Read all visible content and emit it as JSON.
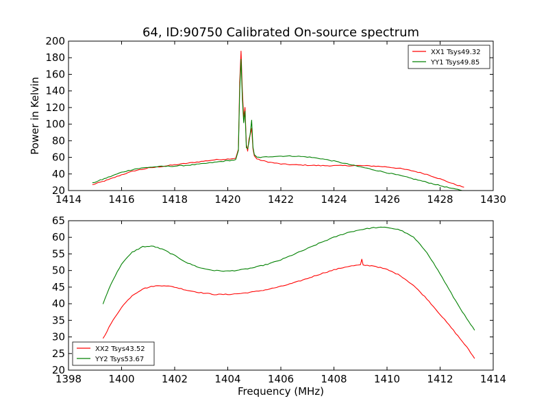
{
  "title": "64, ID:90750 Calibrated On-source spectrum",
  "colors": {
    "xx": "#ff0000",
    "yy": "#008000"
  },
  "chart_data": [
    {
      "type": "line",
      "title": "64, ID:90750 Calibrated On-source spectrum",
      "xlabel": "",
      "ylabel": "Power in Kelvin",
      "xlim": [
        1414,
        1430
      ],
      "ylim": [
        20,
        200
      ],
      "xticks": [
        1414,
        1416,
        1418,
        1420,
        1422,
        1424,
        1426,
        1428,
        1430
      ],
      "yticks": [
        20,
        40,
        60,
        80,
        100,
        120,
        140,
        160,
        180,
        200
      ],
      "legend_position": "top-right",
      "grid": false,
      "series": [
        {
          "name": "XX1 Tsys49.32",
          "color": "#ff0000",
          "x": [
            1414.9,
            1415.5,
            1416.0,
            1416.5,
            1417.0,
            1417.5,
            1418.0,
            1418.5,
            1419.0,
            1419.5,
            1420.0,
            1420.3,
            1420.4,
            1420.45,
            1420.5,
            1420.55,
            1420.6,
            1420.65,
            1420.7,
            1420.75,
            1420.8,
            1420.85,
            1420.9,
            1420.95,
            1421.0,
            1421.1,
            1421.3,
            1421.6,
            1422.0,
            1422.5,
            1423.0,
            1423.5,
            1424.0,
            1424.5,
            1425.0,
            1425.5,
            1426.0,
            1426.5,
            1427.0,
            1427.5,
            1428.0,
            1428.5,
            1428.9
          ],
          "y": [
            27,
            33,
            39,
            44,
            47,
            49,
            51,
            53,
            55,
            57,
            58,
            59,
            70,
            150,
            188,
            140,
            108,
            120,
            75,
            68,
            82,
            88,
            95,
            70,
            62,
            58,
            56,
            54,
            52,
            51,
            50.5,
            50,
            50,
            50,
            50,
            49.5,
            48.5,
            46.5,
            43.5,
            39.5,
            34,
            28,
            24
          ]
        },
        {
          "name": "YY1 Tsys49.85",
          "color": "#008000",
          "x": [
            1414.9,
            1415.5,
            1416.0,
            1416.5,
            1417.0,
            1417.5,
            1418.0,
            1418.5,
            1419.0,
            1419.5,
            1420.0,
            1420.3,
            1420.4,
            1420.45,
            1420.5,
            1420.55,
            1420.6,
            1420.65,
            1420.7,
            1420.75,
            1420.8,
            1420.85,
            1420.9,
            1420.95,
            1421.0,
            1421.1,
            1421.3,
            1421.6,
            1422.0,
            1422.5,
            1423.0,
            1423.5,
            1424.0,
            1424.5,
            1425.0,
            1425.5,
            1426.0,
            1426.5,
            1427.0,
            1427.5,
            1428.0,
            1428.5,
            1428.9
          ],
          "y": [
            29,
            36,
            42,
            46,
            48,
            49,
            49.5,
            50.5,
            52,
            54,
            56,
            57,
            68,
            140,
            178,
            130,
            102,
            116,
            72,
            70,
            78,
            90,
            105,
            72,
            63,
            60,
            60,
            61,
            61.5,
            61.5,
            60.5,
            58.5,
            55.5,
            52,
            48.5,
            45,
            41.5,
            38,
            34,
            30,
            26,
            22,
            20
          ]
        }
      ]
    },
    {
      "type": "line",
      "title": "",
      "xlabel": "Frequency (MHz)",
      "ylabel": "",
      "xlim": [
        1398,
        1414
      ],
      "ylim": [
        20,
        65
      ],
      "xticks": [
        1398,
        1400,
        1402,
        1404,
        1406,
        1408,
        1410,
        1412,
        1414
      ],
      "yticks": [
        20,
        25,
        30,
        35,
        40,
        45,
        50,
        55,
        60,
        65
      ],
      "legend_position": "bottom-left",
      "grid": false,
      "series": [
        {
          "name": "XX2 Tsys43.52",
          "color": "#ff0000",
          "x": [
            1399.3,
            1399.6,
            1400.0,
            1400.4,
            1400.8,
            1401.2,
            1401.6,
            1402.0,
            1402.5,
            1403.0,
            1403.5,
            1404.0,
            1404.5,
            1405.0,
            1405.5,
            1406.0,
            1406.5,
            1407.0,
            1407.5,
            1408.0,
            1408.5,
            1409.0,
            1409.05,
            1409.1,
            1409.5,
            1410.0,
            1410.5,
            1411.0,
            1411.5,
            1412.0,
            1412.5,
            1413.0,
            1413.3
          ],
          "y": [
            29.5,
            34,
            39,
            42.5,
            44.5,
            45.3,
            45.5,
            45,
            44,
            43.3,
            42.8,
            42.8,
            43.1,
            43.6,
            44.3,
            45.2,
            46.3,
            47.6,
            49,
            50.2,
            51.2,
            51.7,
            53.3,
            51.6,
            51.4,
            50.3,
            48.5,
            45.5,
            41.5,
            36.8,
            32,
            27,
            23.5
          ]
        },
        {
          "name": "YY2 Tsys53.67",
          "color": "#008000",
          "x": [
            1399.3,
            1399.6,
            1400.0,
            1400.4,
            1400.8,
            1401.2,
            1401.6,
            1402.0,
            1402.5,
            1403.0,
            1403.5,
            1404.0,
            1404.5,
            1405.0,
            1405.5,
            1406.0,
            1406.5,
            1407.0,
            1407.5,
            1408.0,
            1408.5,
            1409.0,
            1409.5,
            1410.0,
            1410.5,
            1411.0,
            1411.5,
            1412.0,
            1412.5,
            1413.0,
            1413.3
          ],
          "y": [
            40,
            46,
            52,
            55.5,
            57.2,
            57.3,
            56.2,
            54.5,
            52.2,
            50.7,
            50,
            49.8,
            50.2,
            50.9,
            51.9,
            53.2,
            54.9,
            56.6,
            58.4,
            60,
            61.4,
            62.3,
            62.9,
            63,
            62.2,
            60,
            55.5,
            49,
            42,
            35.5,
            32
          ]
        }
      ]
    }
  ]
}
